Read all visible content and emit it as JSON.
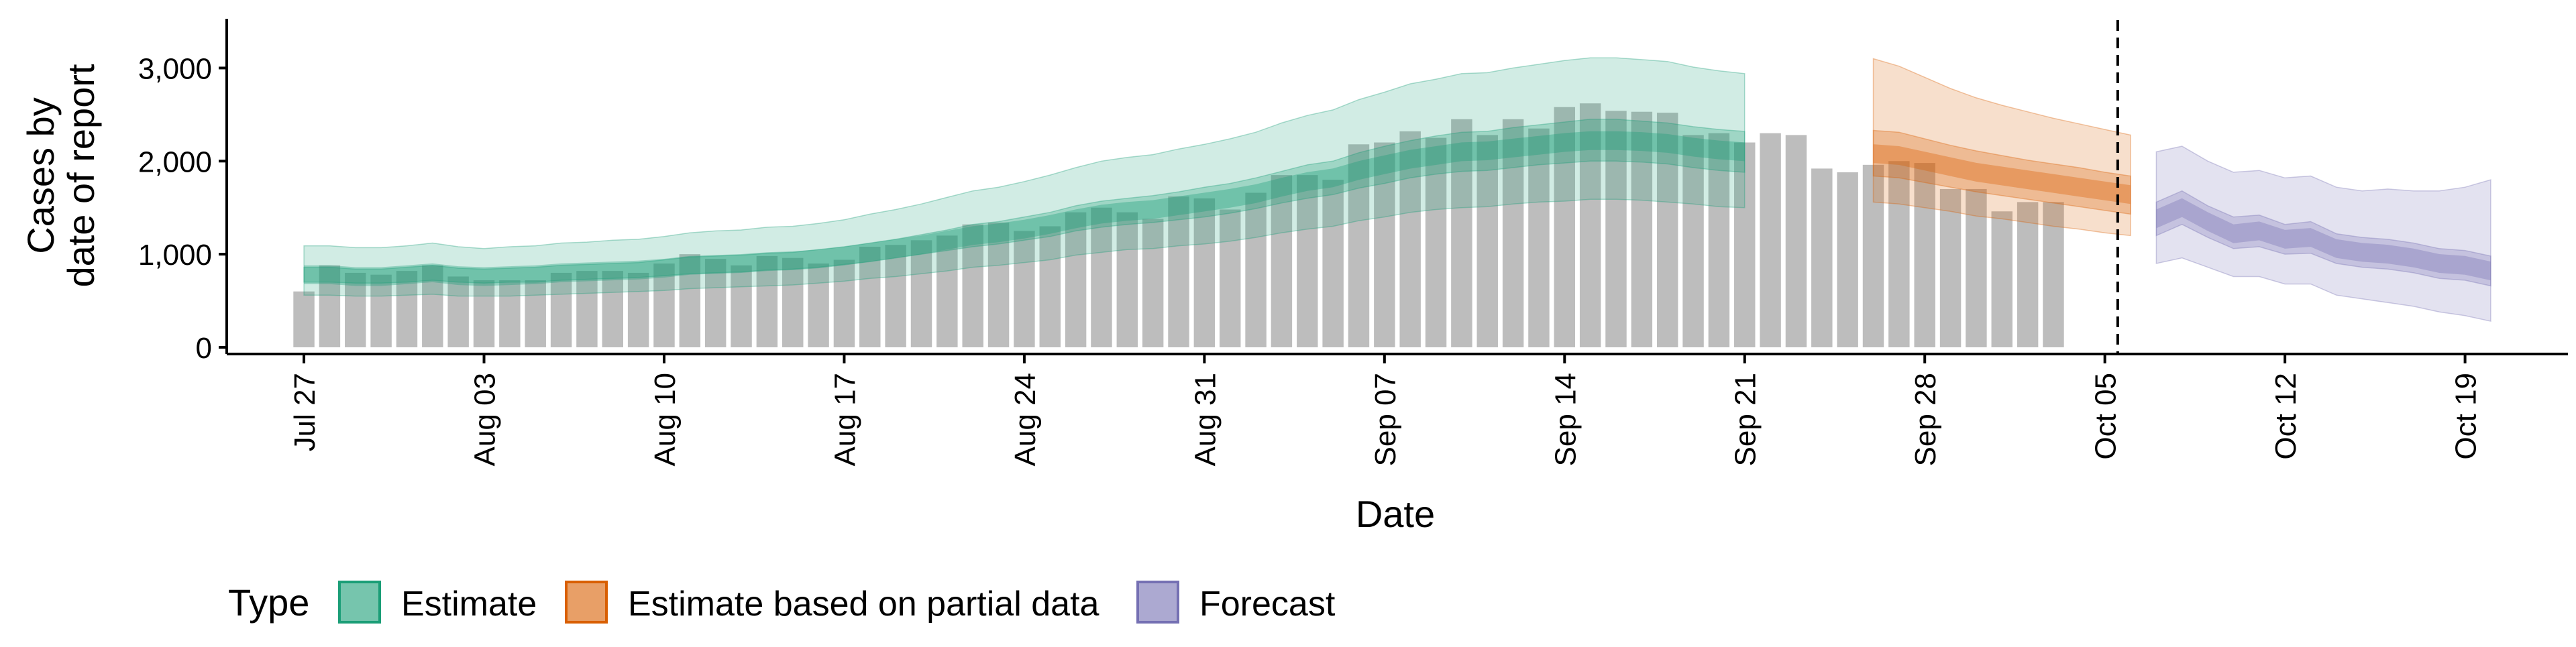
{
  "chart_data": {
    "type": "bar",
    "title": "",
    "xlabel": "Date",
    "ylabel_lines": [
      "Cases by",
      "date of report"
    ],
    "ylim": [
      0,
      3500
    ],
    "y_ticks": [
      0,
      1000,
      2000,
      3000
    ],
    "y_tick_labels": [
      "0",
      "1,000",
      "2,000",
      "3,000"
    ],
    "x_range": [
      "2020-07-24",
      "2020-10-23"
    ],
    "x_ticks": [
      "2020-07-27",
      "2020-08-03",
      "2020-08-10",
      "2020-08-17",
      "2020-08-24",
      "2020-08-31",
      "2020-09-07",
      "2020-09-14",
      "2020-09-21",
      "2020-09-28",
      "2020-10-05",
      "2020-10-12",
      "2020-10-19"
    ],
    "x_tick_labels": [
      "Jul 27",
      "Aug 03",
      "Aug 10",
      "Aug 17",
      "Aug 24",
      "Aug 31",
      "Sep 07",
      "Sep 14",
      "Sep 21",
      "Sep 28",
      "Oct 05",
      "Oct 12",
      "Oct 19"
    ],
    "forecast_start": "2020-10-06",
    "grid": false,
    "legend_position": "bottom",
    "legend_title": "Type",
    "legend": [
      {
        "key": "estimate",
        "label": "Estimate",
        "fill": "#1B9E77",
        "stroke": "#1B9E77"
      },
      {
        "key": "partial",
        "label": "Estimate based on partial data",
        "fill": "#D95F02",
        "stroke": "#D95F02"
      },
      {
        "key": "forecast",
        "label": "Forecast",
        "fill": "#7570B3",
        "stroke": "#7570B3"
      }
    ],
    "bar_color": "#bdbdbd",
    "observed_cases": {
      "start_date": "2020-07-27",
      "values": [
        600,
        880,
        800,
        780,
        820,
        880,
        760,
        720,
        720,
        720,
        800,
        820,
        820,
        800,
        900,
        1000,
        950,
        880,
        980,
        960,
        900,
        940,
        1080,
        1100,
        1150,
        1200,
        1320,
        1340,
        1250,
        1300,
        1450,
        1500,
        1450,
        1380,
        1620,
        1600,
        1480,
        1660,
        1850,
        1850,
        1800,
        2180,
        2200,
        2320,
        2250,
        2450,
        2280,
        2450,
        2350,
        2580,
        2620,
        2540,
        2530,
        2520,
        2280,
        2300,
        2200,
        2300,
        2280,
        1920,
        1880,
        1960,
        2000,
        1980,
        1700,
        1700,
        1460,
        1560,
        1560
      ]
    },
    "estimate": {
      "start_date": "2020-07-27",
      "median": [
        780,
        780,
        760,
        760,
        780,
        800,
        770,
        760,
        770,
        780,
        800,
        810,
        820,
        830,
        850,
        880,
        890,
        900,
        920,
        930,
        950,
        980,
        1020,
        1060,
        1100,
        1150,
        1200,
        1230,
        1270,
        1320,
        1380,
        1430,
        1460,
        1480,
        1520,
        1560,
        1600,
        1650,
        1720,
        1780,
        1820,
        1900,
        1960,
        2020,
        2060,
        2100,
        2110,
        2140,
        2170,
        2200,
        2220,
        2220,
        2210,
        2190,
        2150,
        2120,
        2100
      ],
      "lower_50": [
        700,
        700,
        690,
        690,
        700,
        720,
        700,
        690,
        700,
        700,
        720,
        730,
        740,
        750,
        770,
        790,
        800,
        810,
        830,
        840,
        860,
        890,
        920,
        960,
        1000,
        1040,
        1080,
        1110,
        1150,
        1190,
        1250,
        1290,
        1320,
        1340,
        1370,
        1400,
        1440,
        1490,
        1550,
        1600,
        1640,
        1710,
        1760,
        1820,
        1860,
        1890,
        1900,
        1930,
        1960,
        1980,
        2000,
        2000,
        1990,
        1970,
        1930,
        1900,
        1880
      ],
      "upper_50": [
        860,
        860,
        840,
        840,
        860,
        880,
        850,
        840,
        850,
        860,
        880,
        890,
        900,
        910,
        940,
        970,
        980,
        990,
        1010,
        1020,
        1050,
        1080,
        1120,
        1160,
        1210,
        1260,
        1320,
        1350,
        1400,
        1450,
        1520,
        1570,
        1600,
        1630,
        1670,
        1720,
        1760,
        1820,
        1890,
        1960,
        2000,
        2090,
        2160,
        2220,
        2270,
        2310,
        2320,
        2360,
        2390,
        2420,
        2450,
        2450,
        2430,
        2410,
        2370,
        2340,
        2320
      ],
      "lower_90": [
        560,
        560,
        550,
        550,
        560,
        570,
        550,
        550,
        550,
        560,
        570,
        580,
        590,
        600,
        610,
        630,
        640,
        650,
        660,
        670,
        690,
        710,
        740,
        760,
        790,
        820,
        860,
        880,
        910,
        940,
        990,
        1020,
        1050,
        1060,
        1090,
        1110,
        1140,
        1180,
        1230,
        1270,
        1300,
        1360,
        1400,
        1450,
        1480,
        1500,
        1510,
        1540,
        1560,
        1570,
        1590,
        1590,
        1580,
        1560,
        1540,
        1510,
        1500
      ],
      "upper_90": [
        1090,
        1090,
        1070,
        1070,
        1090,
        1120,
        1080,
        1060,
        1080,
        1090,
        1120,
        1130,
        1150,
        1160,
        1190,
        1230,
        1250,
        1260,
        1290,
        1300,
        1330,
        1370,
        1430,
        1480,
        1540,
        1610,
        1680,
        1720,
        1780,
        1850,
        1930,
        2000,
        2040,
        2070,
        2130,
        2180,
        2240,
        2310,
        2410,
        2490,
        2550,
        2660,
        2740,
        2830,
        2880,
        2940,
        2950,
        3000,
        3040,
        3080,
        3110,
        3110,
        3090,
        3070,
        3010,
        2970,
        2940
      ]
    },
    "partial": {
      "start_date": "2020-09-26",
      "median": [
        2080,
        2060,
        2000,
        1940,
        1880,
        1840,
        1800,
        1760,
        1720,
        1680,
        1640
      ],
      "lower_50": [
        1840,
        1820,
        1770,
        1720,
        1670,
        1630,
        1590,
        1550,
        1510,
        1470,
        1430
      ],
      "upper_50": [
        2330,
        2310,
        2240,
        2170,
        2110,
        2060,
        2010,
        1970,
        1930,
        1880,
        1840
      ],
      "lower_90": [
        1560,
        1540,
        1500,
        1460,
        1410,
        1380,
        1340,
        1300,
        1270,
        1230,
        1200
      ],
      "upper_90": [
        3100,
        3020,
        2900,
        2780,
        2680,
        2600,
        2530,
        2460,
        2400,
        2340,
        2280
      ]
    },
    "forecast": {
      "start_date": "2020-10-07",
      "median": [
        1380,
        1500,
        1350,
        1220,
        1250,
        1160,
        1180,
        1060,
        1020,
        1000,
        960,
        900,
        880,
        820
      ],
      "lower_50": [
        1200,
        1320,
        1180,
        1060,
        1080,
        1000,
        1010,
        900,
        860,
        840,
        800,
        740,
        720,
        660
      ],
      "upper_50": [
        1560,
        1680,
        1520,
        1400,
        1420,
        1320,
        1350,
        1220,
        1180,
        1160,
        1120,
        1060,
        1040,
        980
      ],
      "lower_90": [
        900,
        960,
        860,
        760,
        760,
        680,
        680,
        560,
        520,
        480,
        440,
        380,
        340,
        280
      ],
      "upper_90": [
        2100,
        2160,
        2000,
        1880,
        1900,
        1820,
        1840,
        1720,
        1680,
        1700,
        1680,
        1680,
        1720,
        1800
      ]
    }
  }
}
